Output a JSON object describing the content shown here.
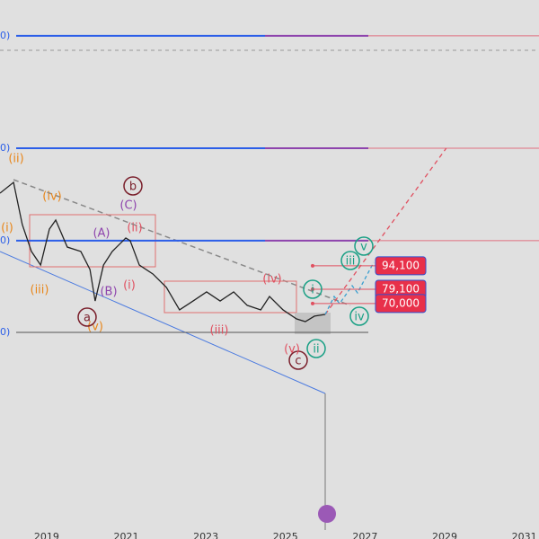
{
  "chart_data": {
    "type": "line",
    "xlim": [
      2017.83,
      2031.37
    ],
    "ylim": [
      22750,
      264250
    ],
    "xticks": [
      2019,
      2021,
      2023,
      2025,
      2027,
      2029,
      2031
    ],
    "x": [
      2017.83,
      2018.17,
      2018.39,
      2018.62,
      2018.85,
      2019.07,
      2019.23,
      2019.52,
      2019.86,
      2020.09,
      2020.22,
      2020.43,
      2020.65,
      2020.99,
      2021.1,
      2021.33,
      2021.67,
      2022.01,
      2022.34,
      2022.68,
      2023.02,
      2023.36,
      2023.7,
      2024.04,
      2024.38,
      2024.6,
      2024.94,
      2025.28,
      2025.5,
      2025.73,
      2026.0
    ],
    "series": [
      {
        "color": "#222222",
        "values": [
          140600,
          147500,
          120500,
          103300,
          94600,
          117600,
          123400,
          106100,
          103300,
          91800,
          71600,
          94600,
          103300,
          111900,
          110200,
          94600,
          88900,
          80300,
          65900,
          71600,
          77400,
          71600,
          77400,
          68800,
          65900,
          74500,
          65900,
          60100,
          58400,
          61900,
          63000
        ]
      }
    ],
    "projection": {
      "color": "#e05060",
      "x": [
        2026.0,
        2029.04
      ],
      "values": [
        63000,
        169400
      ]
    },
    "levels": [
      {
        "value": 241300,
        "label": "0)"
      },
      {
        "value": 169400,
        "label": "0)"
      },
      {
        "value": 110200,
        "label": "0)"
      },
      {
        "value": 51500,
        "label": "0)"
      }
    ],
    "price_tags": [
      {
        "value": 94100,
        "label": "94,100"
      },
      {
        "value": 79100,
        "label": "79,100"
      },
      {
        "value": 70000,
        "label": "70,000"
      }
    ],
    "wave_labels": [
      "(ii)",
      "(i)",
      "(iv)",
      "(iii)",
      "(v)",
      "(C)",
      "(A)",
      "(B)",
      "b",
      "a",
      "c",
      "(ii)",
      "(i)",
      "(iv)",
      "(iii)",
      "(v)",
      "v",
      "iii",
      "i",
      "iv",
      "ii"
    ]
  }
}
